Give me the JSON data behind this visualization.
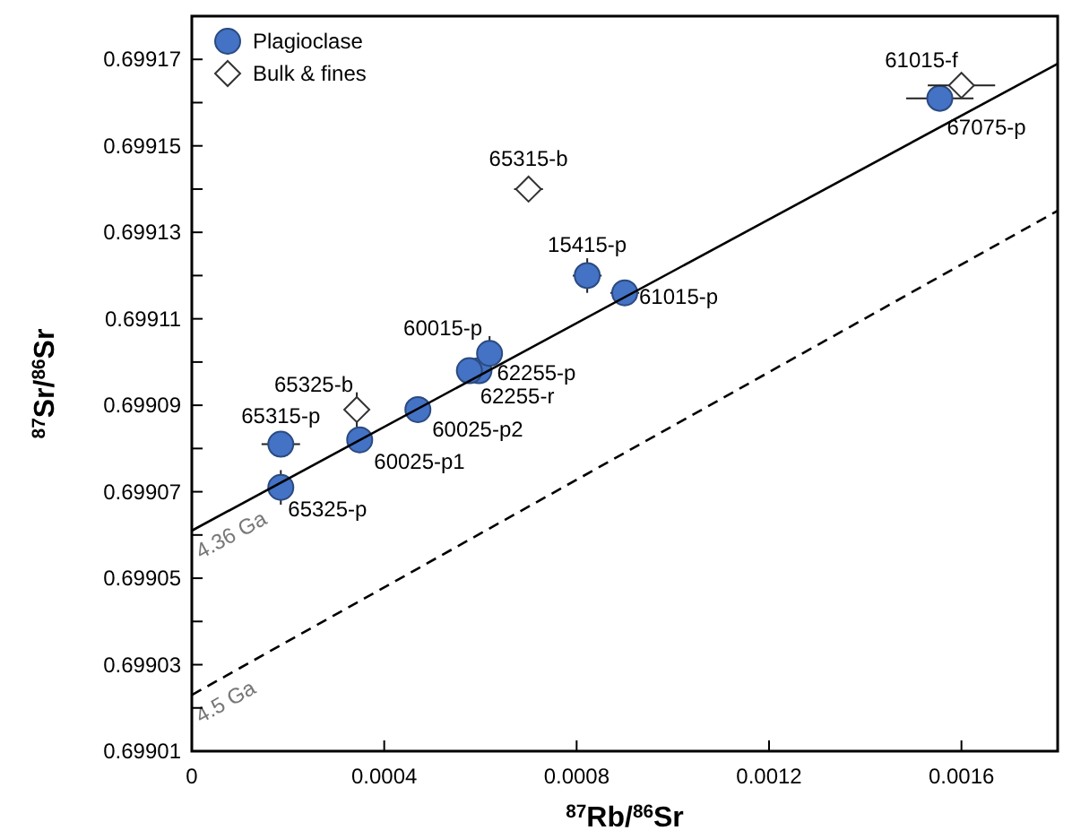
{
  "chart_data": {
    "type": "scatter",
    "xlabel": "$^{87}$Rb/$^{86}$Sr",
    "ylabel": "$^{87}$Sr/$^{86}$Sr",
    "xlim": [
      0,
      0.0018
    ],
    "ylim": [
      0.69901,
      0.69918
    ],
    "xticks": [
      0,
      0.0004,
      0.0008,
      0.0012,
      0.0016
    ],
    "yticks": [
      0.69901,
      {
        "value": 0.69902,
        "label": null
      },
      0.69903,
      {
        "value": 0.69904,
        "label": null
      },
      0.69905,
      {
        "value": 0.69906,
        "label": null
      },
      0.69907,
      {
        "value": 0.69908,
        "label": null
      },
      0.69909,
      {
        "value": 0.6991,
        "label": null
      },
      0.69911,
      {
        "value": 0.69912,
        "label": null
      },
      0.69913,
      {
        "value": 0.69914,
        "label": null
      },
      0.69915,
      {
        "value": 0.69916,
        "label": null
      },
      0.69917
    ],
    "legend": "top left",
    "grid": false,
    "series": [
      {
        "name": "Plagioclase",
        "marker": "circle",
        "color": "#4472c4",
        "x": [
          0.000185,
          0.000185,
          0.000349,
          0.00047,
          0.000597,
          0.000577,
          0.000619,
          0.000822,
          0.0009,
          0.001555
        ],
        "values": [
          0.699081,
          0.699071,
          0.699082,
          0.699089,
          0.699098,
          0.699098,
          0.699102,
          0.69912,
          0.699116,
          0.699161
        ],
        "errors": [
          null,
          4e-06,
          3e-06,
          null,
          2e-06,
          2e-06,
          4e-06,
          4e-06,
          2e-06,
          null
        ],
        "xerrors": [
          4e-05,
          1e-05,
          1e-05,
          1e-05,
          2e-05,
          2e-05,
          null,
          3e-05,
          3e-05,
          7e-05
        ]
      },
      {
        "name": "Bulk & fines",
        "marker": "diamond",
        "color": "#ffffff",
        "x": [
          0.000343,
          0.0007,
          0.0016
        ],
        "values": [
          0.699089,
          0.69914,
          0.699164
        ],
        "errors": [
          4e-06,
          2e-06,
          2e-06
        ],
        "xerrors": [
          1e-05,
          3e-05,
          7e-05
        ]
      },
      {
        "name": "4.36 Ga",
        "type": "line",
        "line_style": "solid",
        "color": "#000000",
        "x": [
          0,
          0.0018
        ],
        "values": [
          0.699061,
          0.699169
        ]
      },
      {
        "name": "4.5 Ga",
        "type": "line",
        "line_style": "dashed",
        "color": "#000000",
        "x": [
          0,
          0.0018
        ],
        "values": [
          0.699023,
          0.699135
        ]
      }
    ],
    "annotations": [
      {
        "text": "65315-p",
        "x": 0.000185,
        "y": 0.699081
      },
      {
        "text": "65325-p",
        "x": 0.000185,
        "y": 0.699071
      },
      {
        "text": "60025-p1",
        "x": 0.000349,
        "y": 0.699082
      },
      {
        "text": "60025-p2",
        "x": 0.00047,
        "y": 0.699089
      },
      {
        "text": "62255-p",
        "x": 0.000597,
        "y": 0.699098
      },
      {
        "text": "62255-r",
        "x": 0.000577,
        "y": 0.699098
      },
      {
        "text": "60015-p",
        "x": 0.000619,
        "y": 0.699102
      },
      {
        "text": "15415-p",
        "x": 0.000822,
        "y": 0.69912
      },
      {
        "text": "61015-p",
        "x": 0.0009,
        "y": 0.699116
      },
      {
        "text": "67075-p",
        "x": 0.001555,
        "y": 0.699161
      },
      {
        "text": "65325-b",
        "x": 0.000343,
        "y": 0.699089
      },
      {
        "text": "65315-b",
        "x": 0.0007,
        "y": 0.69914
      },
      {
        "text": "61015-f",
        "x": 0.0016,
        "y": 0.699164
      }
    ]
  }
}
